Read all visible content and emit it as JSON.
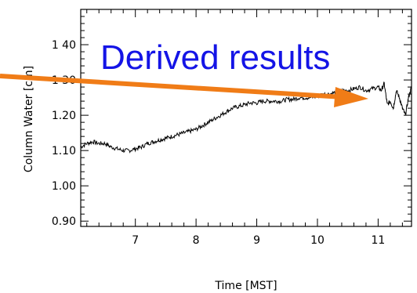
{
  "chart_data": {
    "type": "line",
    "title": "",
    "xlabel": "Time [MST]",
    "ylabel": "Column Water [cm]",
    "xlim": [
      6.1,
      11.55
    ],
    "ylim": [
      0.885,
      1.5
    ],
    "x_ticks": [
      7,
      8,
      9,
      10,
      11
    ],
    "x_tick_labels": [
      "7",
      "8",
      "9",
      "10",
      "11"
    ],
    "y_ticks": [
      0.9,
      1.0,
      1.1,
      1.2,
      1.3,
      1.4
    ],
    "y_tick_labels": [
      "0.90",
      "1.00",
      "1.10",
      "1.20",
      "1 30",
      "1 40"
    ],
    "grid": false,
    "legend": "none",
    "annotation": {
      "text": "Derived results",
      "color": "#1414e6",
      "arrow_color": "#f07c17"
    },
    "series": [
      {
        "color": "#000000",
        "x": [
          6.1,
          6.2,
          6.3,
          6.4,
          6.5,
          6.6,
          6.7,
          6.8,
          6.9,
          7.0,
          7.1,
          7.2,
          7.3,
          7.4,
          7.5,
          7.6,
          7.7,
          7.8,
          7.9,
          8.0,
          8.1,
          8.2,
          8.3,
          8.4,
          8.5,
          8.6,
          8.7,
          8.8,
          8.9,
          9.0,
          9.1,
          9.2,
          9.3,
          9.4,
          9.5,
          9.6,
          9.7,
          9.8,
          9.9,
          10.0,
          10.1,
          10.2,
          10.3,
          10.4,
          10.5,
          10.6,
          10.7,
          10.8,
          10.9,
          11.0,
          11.05,
          11.1,
          11.15,
          11.2,
          11.25,
          11.3,
          11.35,
          11.4,
          11.45,
          11.5,
          11.55
        ],
        "y": [
          1.11,
          1.12,
          1.125,
          1.12,
          1.12,
          1.11,
          1.105,
          1.1,
          1.1,
          1.105,
          1.11,
          1.12,
          1.125,
          1.13,
          1.135,
          1.14,
          1.145,
          1.15,
          1.155,
          1.16,
          1.17,
          1.18,
          1.19,
          1.2,
          1.21,
          1.22,
          1.225,
          1.23,
          1.235,
          1.235,
          1.24,
          1.24,
          1.24,
          1.24,
          1.245,
          1.245,
          1.25,
          1.25,
          1.25,
          1.255,
          1.26,
          1.26,
          1.265,
          1.27,
          1.27,
          1.275,
          1.28,
          1.27,
          1.275,
          1.28,
          1.27,
          1.29,
          1.23,
          1.24,
          1.22,
          1.27,
          1.25,
          1.22,
          1.2,
          1.25,
          1.28
        ]
      }
    ]
  }
}
